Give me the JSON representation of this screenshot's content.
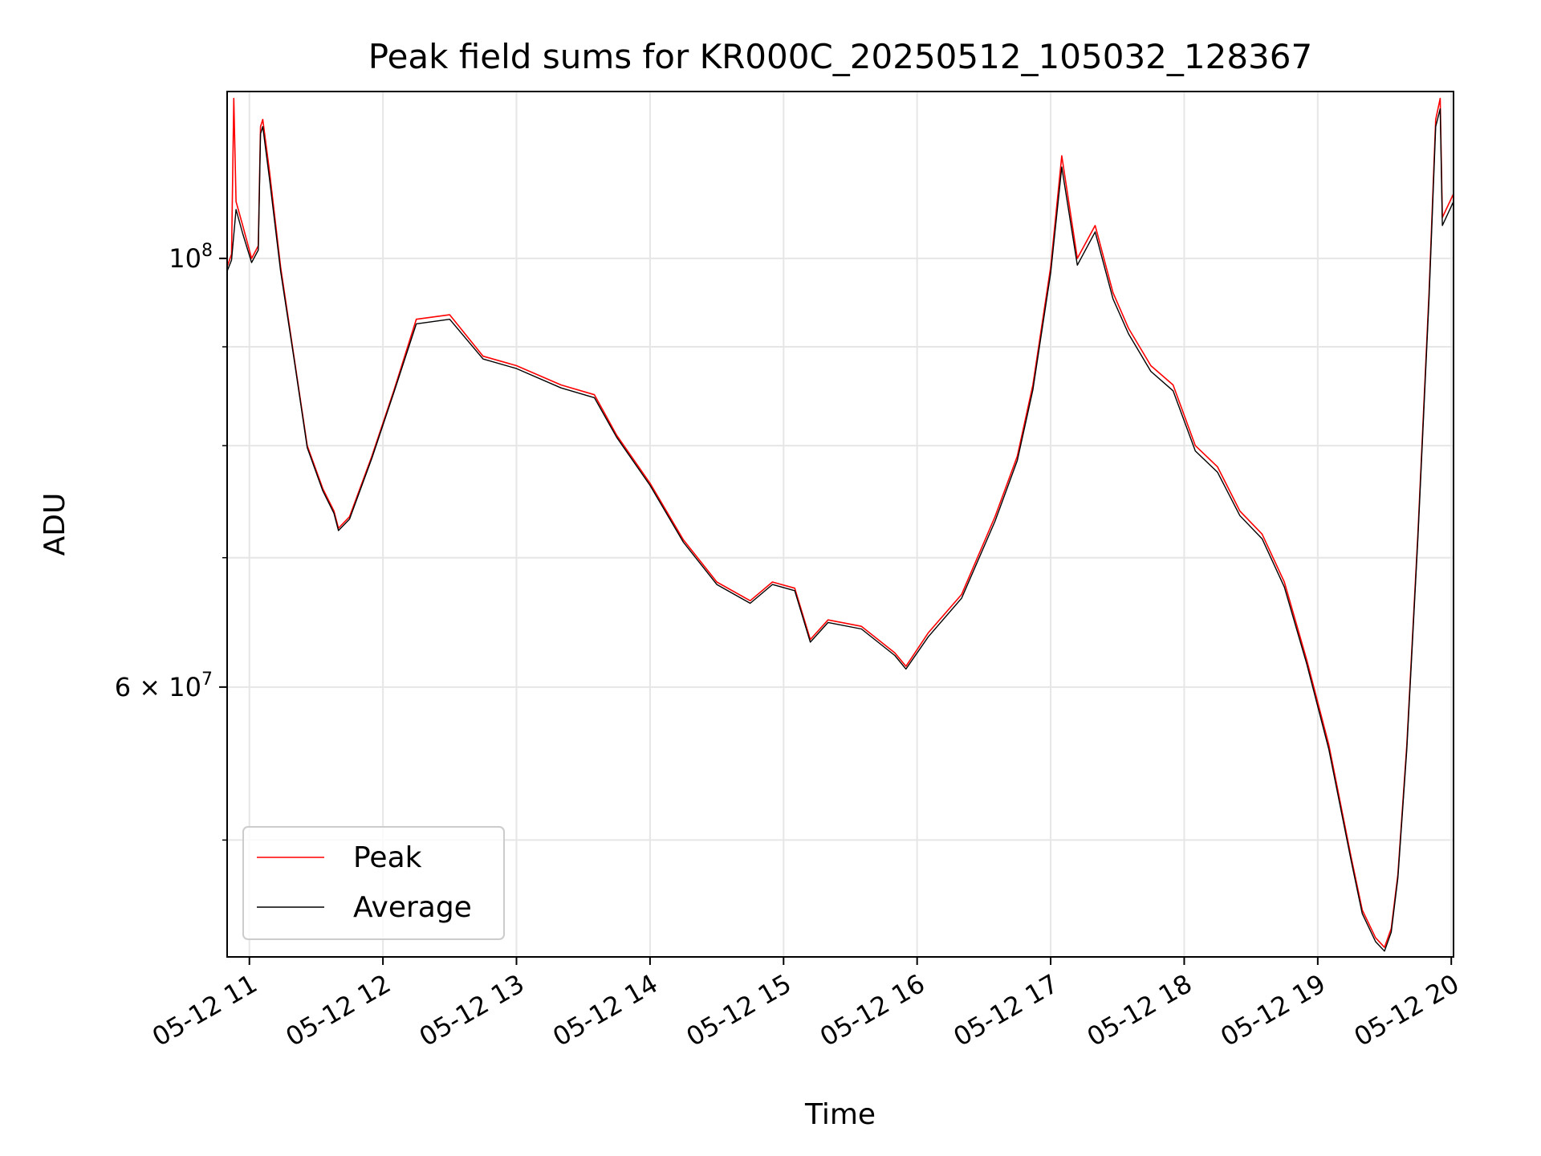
{
  "chart_data": {
    "type": "line",
    "title": "Peak field sums for KR000C_20250512_105032_128367",
    "xlabel": "Time",
    "ylabel": "ADU",
    "x_format": "time",
    "xlim": [
      "2025-05-12T10:50",
      "2025-05-12T20:01"
    ],
    "ylim": [
      43500000,
      122000000
    ],
    "yscale": "log",
    "grid": true,
    "legend_position": "lower-left",
    "x_ticks": [
      {
        "value": "2025-05-12T11:00",
        "label": "05-12 11"
      },
      {
        "value": "2025-05-12T12:00",
        "label": "05-12 12"
      },
      {
        "value": "2025-05-12T13:00",
        "label": "05-12 13"
      },
      {
        "value": "2025-05-12T14:00",
        "label": "05-12 14"
      },
      {
        "value": "2025-05-12T15:00",
        "label": "05-12 15"
      },
      {
        "value": "2025-05-12T16:00",
        "label": "05-12 16"
      },
      {
        "value": "2025-05-12T17:00",
        "label": "05-12 17"
      },
      {
        "value": "2025-05-12T18:00",
        "label": "05-12 18"
      },
      {
        "value": "2025-05-12T19:00",
        "label": "05-12 19"
      },
      {
        "value": "2025-05-12T20:00",
        "label": "05-12 20"
      }
    ],
    "y_major_ticks": [
      {
        "value": 60000000,
        "base": "6",
        "exp": "7"
      },
      {
        "value": 100000000,
        "base": "10",
        "exp": "8"
      }
    ],
    "y_minor_ticks": [
      50000000,
      70000000,
      80000000,
      90000000
    ],
    "series": [
      {
        "name": "Peak",
        "color": "#ff0000",
        "points": [
          [
            "2025-05-12T10:50",
            99000000
          ],
          [
            "2025-05-12T10:52",
            100500000
          ],
          [
            "2025-05-12T10:53",
            121000000
          ],
          [
            "2025-05-12T10:54",
            107000000
          ],
          [
            "2025-05-12T10:57",
            104000000
          ],
          [
            "2025-05-12T11:01",
            100000000
          ],
          [
            "2025-05-12T11:04",
            101500000
          ],
          [
            "2025-05-12T11:05",
            117000000
          ],
          [
            "2025-05-12T11:06",
            118000000
          ],
          [
            "2025-05-12T11:09",
            111000000
          ],
          [
            "2025-05-12T11:14",
            99000000
          ],
          [
            "2025-05-12T11:20",
            89000000
          ],
          [
            "2025-05-12T11:26",
            80000000
          ],
          [
            "2025-05-12T11:33",
            76000000
          ],
          [
            "2025-05-12T11:38",
            74000000
          ],
          [
            "2025-05-12T11:40",
            72500000
          ],
          [
            "2025-05-12T11:45",
            73500000
          ],
          [
            "2025-05-12T11:55",
            79000000
          ],
          [
            "2025-05-12T12:05",
            85500000
          ],
          [
            "2025-05-12T12:15",
            93000000
          ],
          [
            "2025-05-12T12:30",
            93500000
          ],
          [
            "2025-05-12T12:45",
            89000000
          ],
          [
            "2025-05-12T13:00",
            88000000
          ],
          [
            "2025-05-12T13:20",
            86000000
          ],
          [
            "2025-05-12T13:35",
            85000000
          ],
          [
            "2025-05-12T13:45",
            81000000
          ],
          [
            "2025-05-12T14:00",
            76500000
          ],
          [
            "2025-05-12T14:15",
            71500000
          ],
          [
            "2025-05-12T14:30",
            68000000
          ],
          [
            "2025-05-12T14:45",
            66500000
          ],
          [
            "2025-05-12T14:55",
            68000000
          ],
          [
            "2025-05-12T15:05",
            67500000
          ],
          [
            "2025-05-12T15:12",
            63500000
          ],
          [
            "2025-05-12T15:20",
            65000000
          ],
          [
            "2025-05-12T15:35",
            64500000
          ],
          [
            "2025-05-12T15:50",
            62500000
          ],
          [
            "2025-05-12T15:55",
            61500000
          ],
          [
            "2025-05-12T16:05",
            64000000
          ],
          [
            "2025-05-12T16:20",
            67000000
          ],
          [
            "2025-05-12T16:35",
            73500000
          ],
          [
            "2025-05-12T16:45",
            79000000
          ],
          [
            "2025-05-12T16:52",
            86000000
          ],
          [
            "2025-05-12T17:00",
            99000000
          ],
          [
            "2025-05-12T17:05",
            113000000
          ],
          [
            "2025-05-12T17:12",
            100000000
          ],
          [
            "2025-05-12T17:20",
            104000000
          ],
          [
            "2025-05-12T17:28",
            96000000
          ],
          [
            "2025-05-12T17:35",
            92000000
          ],
          [
            "2025-05-12T17:45",
            88000000
          ],
          [
            "2025-05-12T17:55",
            86000000
          ],
          [
            "2025-05-12T18:05",
            80000000
          ],
          [
            "2025-05-12T18:15",
            78000000
          ],
          [
            "2025-05-12T18:25",
            74000000
          ],
          [
            "2025-05-12T18:35",
            72000000
          ],
          [
            "2025-05-12T18:45",
            68000000
          ],
          [
            "2025-05-12T18:55",
            62000000
          ],
          [
            "2025-05-12T19:05",
            56000000
          ],
          [
            "2025-05-12T19:15",
            49000000
          ],
          [
            "2025-05-12T19:20",
            46000000
          ],
          [
            "2025-05-12T19:26",
            44500000
          ],
          [
            "2025-05-12T19:30",
            44000000
          ],
          [
            "2025-05-12T19:33",
            45000000
          ],
          [
            "2025-05-12T19:36",
            48000000
          ],
          [
            "2025-05-12T19:40",
            56000000
          ],
          [
            "2025-05-12T19:45",
            72000000
          ],
          [
            "2025-05-12T19:50",
            96000000
          ],
          [
            "2025-05-12T19:53",
            118000000
          ],
          [
            "2025-05-12T19:55",
            121000000
          ],
          [
            "2025-05-12T19:56",
            105000000
          ],
          [
            "2025-05-12T20:01",
            108000000
          ]
        ]
      },
      {
        "name": "Average",
        "color": "#000000",
        "points": [
          [
            "2025-05-12T10:50",
            98500000
          ],
          [
            "2025-05-12T10:52",
            99800000
          ],
          [
            "2025-05-12T10:54",
            106000000
          ],
          [
            "2025-05-12T10:57",
            103000000
          ],
          [
            "2025-05-12T11:01",
            99500000
          ],
          [
            "2025-05-12T11:04",
            101000000
          ],
          [
            "2025-05-12T11:05",
            116000000
          ],
          [
            "2025-05-12T11:06",
            117000000
          ],
          [
            "2025-05-12T11:09",
            110000000
          ],
          [
            "2025-05-12T11:14",
            98500000
          ],
          [
            "2025-05-12T11:20",
            88800000
          ],
          [
            "2025-05-12T11:26",
            79800000
          ],
          [
            "2025-05-12T11:33",
            75800000
          ],
          [
            "2025-05-12T11:38",
            73800000
          ],
          [
            "2025-05-12T11:40",
            72300000
          ],
          [
            "2025-05-12T11:45",
            73300000
          ],
          [
            "2025-05-12T11:55",
            78800000
          ],
          [
            "2025-05-12T12:05",
            85300000
          ],
          [
            "2025-05-12T12:15",
            92500000
          ],
          [
            "2025-05-12T12:30",
            93000000
          ],
          [
            "2025-05-12T12:45",
            88700000
          ],
          [
            "2025-05-12T13:00",
            87700000
          ],
          [
            "2025-05-12T13:20",
            85700000
          ],
          [
            "2025-05-12T13:35",
            84700000
          ],
          [
            "2025-05-12T13:45",
            80800000
          ],
          [
            "2025-05-12T14:00",
            76300000
          ],
          [
            "2025-05-12T14:15",
            71300000
          ],
          [
            "2025-05-12T14:30",
            67800000
          ],
          [
            "2025-05-12T14:45",
            66300000
          ],
          [
            "2025-05-12T14:55",
            67800000
          ],
          [
            "2025-05-12T15:05",
            67300000
          ],
          [
            "2025-05-12T15:12",
            63300000
          ],
          [
            "2025-05-12T15:20",
            64800000
          ],
          [
            "2025-05-12T15:35",
            64300000
          ],
          [
            "2025-05-12T15:50",
            62300000
          ],
          [
            "2025-05-12T15:55",
            61300000
          ],
          [
            "2025-05-12T16:05",
            63700000
          ],
          [
            "2025-05-12T16:20",
            66700000
          ],
          [
            "2025-05-12T16:35",
            73100000
          ],
          [
            "2025-05-12T16:45",
            78600000
          ],
          [
            "2025-05-12T16:52",
            85500000
          ],
          [
            "2025-05-12T17:00",
            98300000
          ],
          [
            "2025-05-12T17:05",
            111500000
          ],
          [
            "2025-05-12T17:12",
            99200000
          ],
          [
            "2025-05-12T17:20",
            103200000
          ],
          [
            "2025-05-12T17:28",
            95300000
          ],
          [
            "2025-05-12T17:35",
            91400000
          ],
          [
            "2025-05-12T17:45",
            87400000
          ],
          [
            "2025-05-12T17:55",
            85400000
          ],
          [
            "2025-05-12T18:05",
            79500000
          ],
          [
            "2025-05-12T18:15",
            77500000
          ],
          [
            "2025-05-12T18:25",
            73600000
          ],
          [
            "2025-05-12T18:35",
            71600000
          ],
          [
            "2025-05-12T18:45",
            67600000
          ],
          [
            "2025-05-12T18:55",
            61700000
          ],
          [
            "2025-05-12T19:05",
            55700000
          ],
          [
            "2025-05-12T19:15",
            48800000
          ],
          [
            "2025-05-12T19:20",
            45800000
          ],
          [
            "2025-05-12T19:26",
            44300000
          ],
          [
            "2025-05-12T19:30",
            43800000
          ],
          [
            "2025-05-12T19:33",
            44800000
          ],
          [
            "2025-05-12T19:36",
            47800000
          ],
          [
            "2025-05-12T19:40",
            55700000
          ],
          [
            "2025-05-12T19:45",
            71600000
          ],
          [
            "2025-05-12T19:50",
            95300000
          ],
          [
            "2025-05-12T19:53",
            117000000
          ],
          [
            "2025-05-12T19:55",
            119500000
          ],
          [
            "2025-05-12T19:56",
            104000000
          ],
          [
            "2025-05-12T20:01",
            107000000
          ]
        ]
      }
    ]
  }
}
